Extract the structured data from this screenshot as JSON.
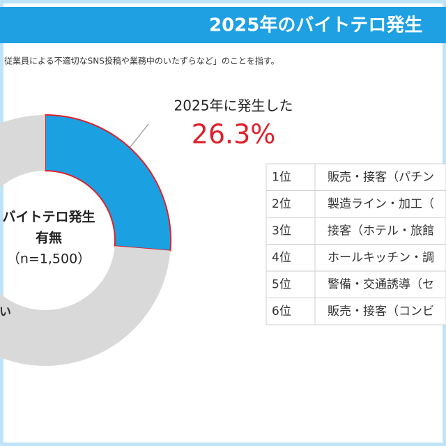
{
  "chart_data": {
    "type": "donut",
    "title": "2025年のバイトテロ発生",
    "subtitle": "従業員による不適切なSNS投稿や業務中のいたずらなど」のことを指す。",
    "center_label": [
      "バイトテロ発生",
      "有無",
      "（n=1,500）"
    ],
    "categories": [
      "2025年に発生した",
      "発生していない"
    ],
    "values": [
      26.3,
      73.7
    ],
    "value_labels": [
      "26.3%",
      null
    ],
    "colors": [
      "#1ba1e2",
      "#d9d9d9"
    ],
    "highlight_color": "#e0202a"
  },
  "table": {
    "rows": [
      [
        "1位",
        "販売・接客（パチン"
      ],
      [
        "2位",
        "製造ライン・加工（"
      ],
      [
        "3位",
        "接客（ホテル・旅館"
      ],
      [
        "4位",
        "ホールキッチン・調"
      ],
      [
        "5位",
        "警備・交通誘導（セ"
      ],
      [
        "6位",
        "販売・接客（コンビ"
      ]
    ]
  }
}
